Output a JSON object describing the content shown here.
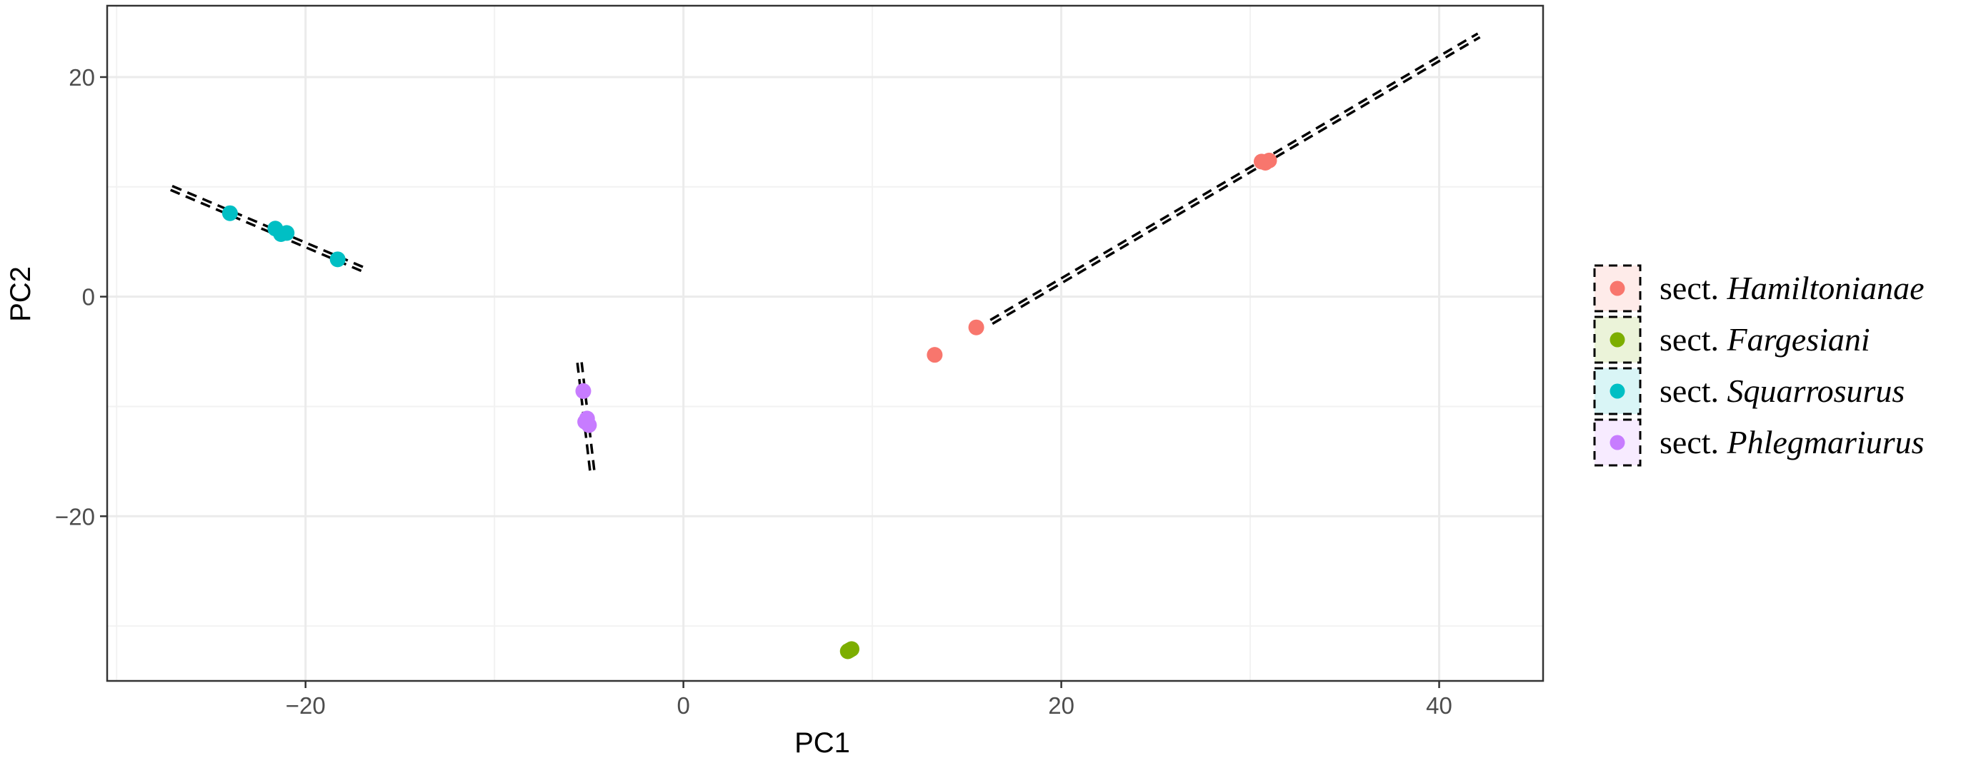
{
  "chart_data": {
    "type": "scatter",
    "title": "",
    "xlabel": "PC1",
    "ylabel": "PC2",
    "xlim": [
      -30.5,
      45.5
    ],
    "ylim": [
      -35,
      26.5
    ],
    "x_ticks": [
      -20,
      0,
      20,
      40
    ],
    "y_ticks": [
      -20,
      0,
      20
    ],
    "x_tick_labels": [
      "−20",
      "0",
      "20",
      "40"
    ],
    "y_tick_labels": [
      "−20",
      "0",
      "20"
    ],
    "grid": true,
    "legend_position": "right",
    "legend": {
      "entries": [
        {
          "prefix": "sect. ",
          "name": "Hamiltonianae",
          "color": "#F8766D"
        },
        {
          "prefix": "sect. ",
          "name": "Fargesiani",
          "color": "#7CAE00"
        },
        {
          "prefix": "sect. ",
          "name": "Squarrosurus",
          "color": "#00BFC4"
        },
        {
          "prefix": "sect. ",
          "name": "Phlegmariurus",
          "color": "#C77CFF"
        }
      ]
    },
    "series": [
      {
        "name": "sect. Hamiltonianae",
        "color": "#F8766D",
        "points": [
          [
            13.3,
            -5.3
          ],
          [
            15.5,
            -2.8
          ],
          [
            30.6,
            12.3
          ],
          [
            31.0,
            12.4
          ],
          [
            30.8,
            12.2
          ]
        ],
        "ellipse_line": [
          [
            16.3,
            -2.3
          ],
          [
            42.1,
            23.8
          ]
        ]
      },
      {
        "name": "sect. Fargesiani",
        "color": "#7CAE00",
        "points": [
          [
            8.8,
            -32.2
          ],
          [
            8.7,
            -32.3
          ],
          [
            8.9,
            -32.1
          ]
        ],
        "ellipse_line": [
          [
            8.5,
            -32.2
          ],
          [
            9.2,
            -32.2
          ]
        ]
      },
      {
        "name": "sect. Squarrosurus",
        "color": "#00BFC4",
        "points": [
          [
            -24.0,
            7.6
          ],
          [
            -21.6,
            6.2
          ],
          [
            -21.3,
            5.7
          ],
          [
            -21.0,
            5.8
          ],
          [
            -18.3,
            3.4
          ]
        ],
        "ellipse_line": [
          [
            -27.1,
            9.9
          ],
          [
            -16.7,
            2.3
          ]
        ]
      },
      {
        "name": "sect. Phlegmariurus",
        "color": "#C77CFF",
        "points": [
          [
            -5.3,
            -8.6
          ],
          [
            -5.1,
            -11.1
          ],
          [
            -5.0,
            -11.7
          ],
          [
            -5.2,
            -11.4
          ]
        ],
        "ellipse_line": [
          [
            -5.5,
            -6.0
          ],
          [
            -4.8,
            -16.3
          ]
        ]
      }
    ]
  }
}
